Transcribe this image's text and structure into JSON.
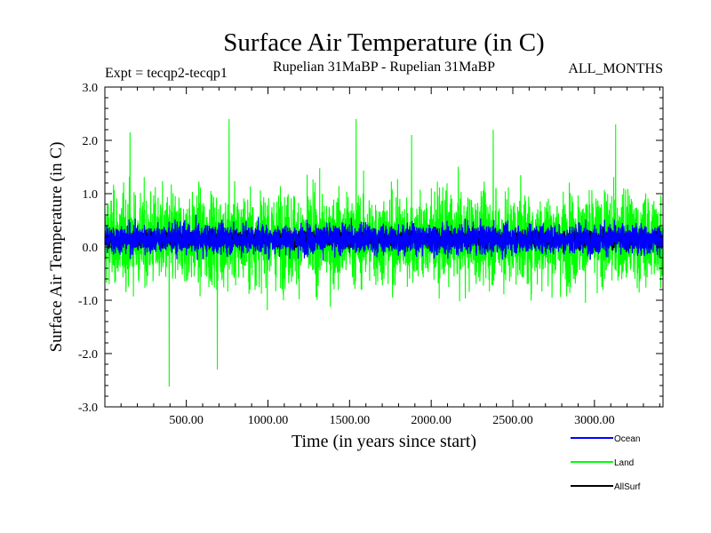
{
  "chart_data": {
    "type": "line",
    "title": "Surface Air Temperature (in C)",
    "subtitle_left": "Expt = tecqp2-tecqp1",
    "subtitle_center": "Rupelian  31MaBP - Rupelian  31MaBP",
    "subtitle_right": "ALL_MONTHS",
    "xlabel": "Time (in years since start)",
    "ylabel": "Surface Air Temperature (in C)",
    "xlim": [
      1,
      3420
    ],
    "ylim": [
      -3.0,
      3.0
    ],
    "x_ticks": [
      500,
      1000,
      1500,
      2000,
      2500,
      3000
    ],
    "x_tick_labels": [
      "500.00",
      "1000.00",
      "1500.00",
      "2000.00",
      "2500.00",
      "3000.00"
    ],
    "y_ticks": [
      -3.0,
      -2.0,
      -1.0,
      0.0,
      1.0,
      2.0,
      3.0
    ],
    "y_tick_labels": [
      "-3.0",
      "-2.0",
      "-1.0",
      "0.0",
      "1.0",
      "2.0",
      "3.0"
    ],
    "grid": false,
    "legend_position": "bottom-right",
    "series": [
      {
        "name": "Land",
        "color": "#00ff00",
        "mean": 0.15,
        "typical_range": [
          -1.4,
          1.7
        ],
        "extremes": [
          {
            "x": 395,
            "y": -2.62
          },
          {
            "x": 690,
            "y": -2.3
          },
          {
            "x": 762,
            "y": 2.4
          },
          {
            "x": 1540,
            "y": 2.4
          },
          {
            "x": 3130,
            "y": 2.3
          },
          {
            "x": 155,
            "y": 2.15
          },
          {
            "x": 2380,
            "y": 2.2
          },
          {
            "x": 1880,
            "y": 2.1
          }
        ]
      },
      {
        "name": "Ocean",
        "color": "#0000ff",
        "mean": 0.15,
        "typical_range": [
          -0.4,
          0.65
        ],
        "extremes": []
      },
      {
        "name": "AllSurf",
        "color": "#000000",
        "mean": 0.15,
        "typical_range": [
          -0.2,
          0.4
        ],
        "extremes": []
      }
    ]
  }
}
